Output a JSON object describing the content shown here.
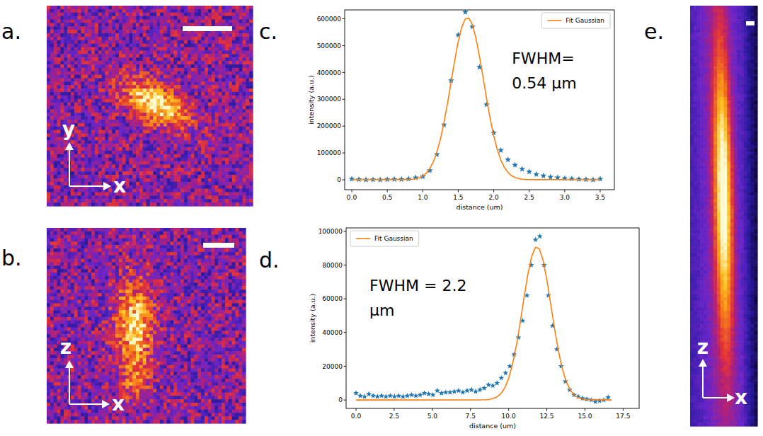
{
  "panels": {
    "a": {
      "label": "a.",
      "axis_labels": [
        "y",
        "x"
      ]
    },
    "b": {
      "label": "b.",
      "axis_labels": [
        "z",
        "x"
      ]
    },
    "c": {
      "label": "c."
    },
    "d": {
      "label": "d."
    },
    "e": {
      "label": "e.",
      "axis_labels": [
        "z",
        "x"
      ]
    }
  },
  "chart_data": [
    {
      "type": "scatter",
      "x_label": "distance (um)",
      "y_label": "intensity (a.u.)",
      "annotations": [
        "FWHM=",
        "0.54 µm"
      ],
      "xlim": [
        -0.1,
        3.7
      ],
      "ylim": [
        -37000,
        633000
      ],
      "xticks": [
        {
          "value": 0,
          "label": "0.0"
        },
        {
          "value": 0.5,
          "label": "0.5"
        },
        {
          "value": 1,
          "label": "1.0"
        },
        {
          "value": 1.5,
          "label": "1.5"
        },
        {
          "value": 2,
          "label": "2.0"
        },
        {
          "value": 2.5,
          "label": "2.5"
        },
        {
          "value": 3,
          "label": "3.0"
        },
        {
          "value": 3.5,
          "label": "3.5"
        }
      ],
      "yticks": [
        0,
        100000,
        200000,
        300000,
        400000,
        500000,
        600000
      ],
      "grid": false,
      "legend": "upper right",
      "series": [
        {
          "type": "scatter",
          "marker": "star",
          "color": "#1f77b4",
          "x": [
            0,
            0.1,
            0.2,
            0.3,
            0.4,
            0.5,
            0.6,
            0.7,
            0.8,
            0.9,
            1.0,
            1.1,
            1.2,
            1.3,
            1.4,
            1.5,
            1.6,
            1.7,
            1.8,
            1.9,
            2.0,
            2.1,
            2.2,
            2.3,
            2.4,
            2.5,
            2.6,
            2.7,
            2.8,
            2.9,
            3.0,
            3.1,
            3.2,
            3.3,
            3.4,
            3.5
          ],
          "values": [
            3000,
            1000,
            0,
            500,
            0,
            1000,
            2000,
            1500,
            3000,
            8000,
            12000,
            35000,
            95000,
            205000,
            370000,
            540000,
            625000,
            570000,
            420000,
            280000,
            175000,
            110000,
            75000,
            55000,
            40000,
            30000,
            20000,
            15000,
            10000,
            8000,
            5000,
            4000,
            2000,
            1000,
            0,
            3000
          ]
        },
        {
          "name": "Fit Gaussian",
          "type": "line",
          "line_style": "solid",
          "color": "#ff7f0e",
          "x": [
            0,
            0.8,
            0.85,
            0.9,
            0.95,
            1.0,
            1.05,
            1.1,
            1.15,
            1.2,
            1.25,
            1.3,
            1.35,
            1.4,
            1.45,
            1.5,
            1.55,
            1.6,
            1.65,
            1.7,
            1.75,
            1.8,
            1.85,
            1.9,
            1.95,
            2.0,
            2.05,
            2.1,
            2.15,
            2.2,
            2.25,
            2.3,
            2.35,
            2.4,
            2.45,
            2.5,
            3.5
          ],
          "values": [
            0,
            850,
            1830,
            3760,
            7360,
            13700,
            24500,
            41600,
            67300,
            103800,
            152800,
            214300,
            286500,
            365400,
            444300,
            515000,
            569200,
            599900,
            602700,
            577400,
            527400,
            459300,
            381400,
            302000,
            228000,
            164100,
            112600,
            73600,
            45900,
            27300,
            15500,
            8400,
            4300,
            2100,
            1000,
            450,
            0
          ]
        }
      ]
    },
    {
      "type": "scatter",
      "x_label": "distance (um)",
      "y_label": "intensity (a.u.)",
      "annotations": [
        "FWHM = 2.2",
        "µm"
      ],
      "xlim": [
        -0.65,
        18.55
      ],
      "ylim": [
        -5000,
        102000
      ],
      "xticks": [
        {
          "value": 0,
          "label": "0.0"
        },
        {
          "value": 2.5,
          "label": "2.5"
        },
        {
          "value": 5,
          "label": "5.0"
        },
        {
          "value": 7.5,
          "label": "7.5"
        },
        {
          "value": 10,
          "label": "10.0"
        },
        {
          "value": 12.5,
          "label": "12.5"
        },
        {
          "value": 15,
          "label": "15.0"
        },
        {
          "value": 17.5,
          "label": "17.5"
        }
      ],
      "yticks": [
        0,
        20000,
        40000,
        60000,
        80000,
        100000
      ],
      "grid": false,
      "legend": "upper left",
      "series": [
        {
          "type": "scatter",
          "marker": "star",
          "color": "#1f77b4",
          "x": [
            0,
            0.28,
            0.56,
            0.84,
            1.12,
            1.4,
            1.68,
            1.96,
            2.24,
            2.52,
            2.8,
            3.08,
            3.36,
            3.64,
            3.92,
            4.2,
            4.48,
            4.76,
            5.04,
            5.32,
            5.6,
            5.88,
            6.16,
            6.44,
            6.72,
            7,
            7.28,
            7.56,
            7.84,
            8.12,
            8.4,
            8.68,
            8.96,
            9.24,
            9.52,
            9.8,
            10.08,
            10.36,
            10.64,
            10.92,
            11.2,
            11.48,
            11.76,
            12.04,
            12.32,
            12.6,
            12.88,
            13.16,
            13.44,
            13.72,
            14,
            14.28,
            14.56,
            14.84,
            15.12,
            15.4,
            15.68,
            15.96,
            16.24,
            16.52
          ],
          "values": [
            4000,
            2500,
            2000,
            3500,
            2500,
            2000,
            2500,
            2000,
            2500,
            2000,
            2500,
            2000,
            2500,
            3000,
            2500,
            3000,
            4000,
            3500,
            3000,
            5500,
            4000,
            4500,
            4500,
            5000,
            5500,
            4500,
            5500,
            6000,
            5000,
            6000,
            7000,
            9000,
            8500,
            10000,
            13000,
            16000,
            20000,
            27000,
            37000,
            47000,
            62000,
            80000,
            95000,
            97000,
            80000,
            62000,
            44000,
            30000,
            20000,
            11000,
            6000,
            3000,
            2000,
            1000,
            500,
            0,
            -1000,
            -500,
            0,
            1500
          ]
        },
        {
          "name": "Fit Gaussian",
          "type": "line",
          "line_style": "solid",
          "color": "#ff7f0e",
          "x": [
            0,
            8.0,
            8.5,
            8.75,
            9.0,
            9.25,
            9.5,
            9.75,
            10.0,
            10.25,
            10.5,
            10.75,
            11.0,
            11.25,
            11.5,
            11.75,
            12.0,
            12.25,
            12.5,
            12.75,
            13.0,
            13.25,
            13.5,
            13.75,
            14.0,
            14.25,
            14.5,
            14.75,
            15.0,
            16.75
          ],
          "values": [
            0,
            19,
            147,
            369,
            865,
            1890,
            3840,
            7270,
            12800,
            21000,
            32000,
            45500,
            60200,
            74000,
            84800,
            90500,
            89800,
            83000,
            71400,
            57200,
            42700,
            29600,
            19100,
            11500,
            6430,
            3350,
            1630,
            735,
            309,
            0
          ]
        }
      ]
    }
  ]
}
